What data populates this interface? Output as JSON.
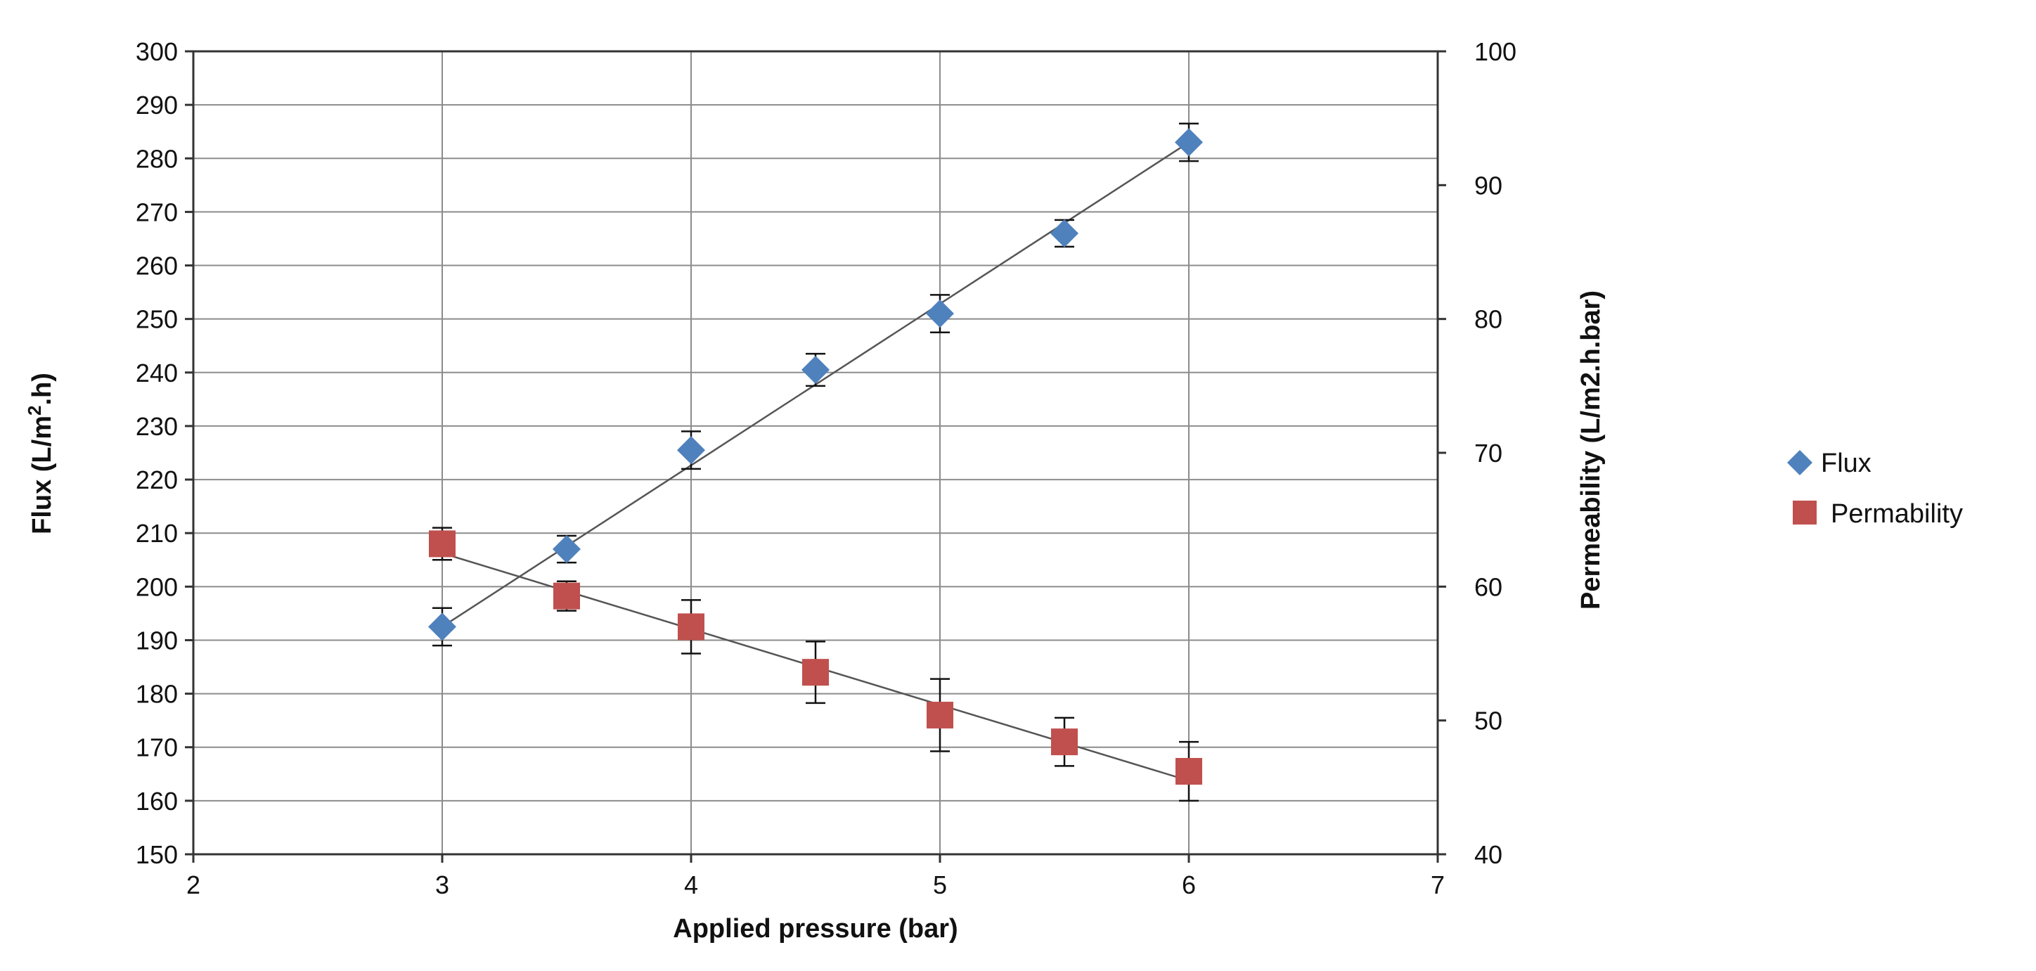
{
  "chart_data": {
    "type": "scatter",
    "title": "",
    "xlabel": "Applied pressure  (bar)",
    "ylabel": "Flux (L/m2.h)",
    "ylabel_parts": {
      "pre": "Flux (L/m",
      "sup": "2",
      "post": ".h)"
    },
    "y2label": "Permeability (L/m2.h.bar)",
    "xlim": [
      2,
      7
    ],
    "xticks": [
      "2",
      "3",
      "4",
      "5",
      "6",
      "7"
    ],
    "ylim": [
      150,
      300
    ],
    "yticks": [
      "150",
      "160",
      "170",
      "180",
      "190",
      "200",
      "210",
      "220",
      "230",
      "240",
      "250",
      "260",
      "270",
      "280",
      "290",
      "300"
    ],
    "y2lim": [
      40,
      100
    ],
    "y2ticks": [
      "40",
      "50",
      "60",
      "70",
      "80",
      "90",
      "100"
    ],
    "grid": true,
    "legend": "right",
    "series": [
      {
        "name": "Flux",
        "axis": "left",
        "marker": "diamond",
        "color": "#4f81bd",
        "x": [
          3,
          3.5,
          4,
          4.5,
          5,
          5.5,
          6
        ],
        "values": [
          192.5,
          207,
          225.5,
          240.5,
          251,
          266,
          283
        ],
        "error": [
          3.5,
          2.5,
          3.5,
          3,
          3.5,
          2.5,
          3.5
        ],
        "trendline": [
          192.5,
          283
        ]
      },
      {
        "name": "Permability",
        "axis": "right",
        "marker": "square",
        "color": "#c0504d",
        "x": [
          3,
          3.5,
          4,
          4.5,
          5,
          5.5,
          6
        ],
        "values": [
          63.2,
          59.3,
          57,
          53.6,
          50.4,
          48.4,
          46.2
        ],
        "error": [
          1.2,
          1.1,
          2,
          2.3,
          2.7,
          1.8,
          2.2
        ],
        "trendline": [
          62.5,
          45.5
        ]
      }
    ]
  }
}
